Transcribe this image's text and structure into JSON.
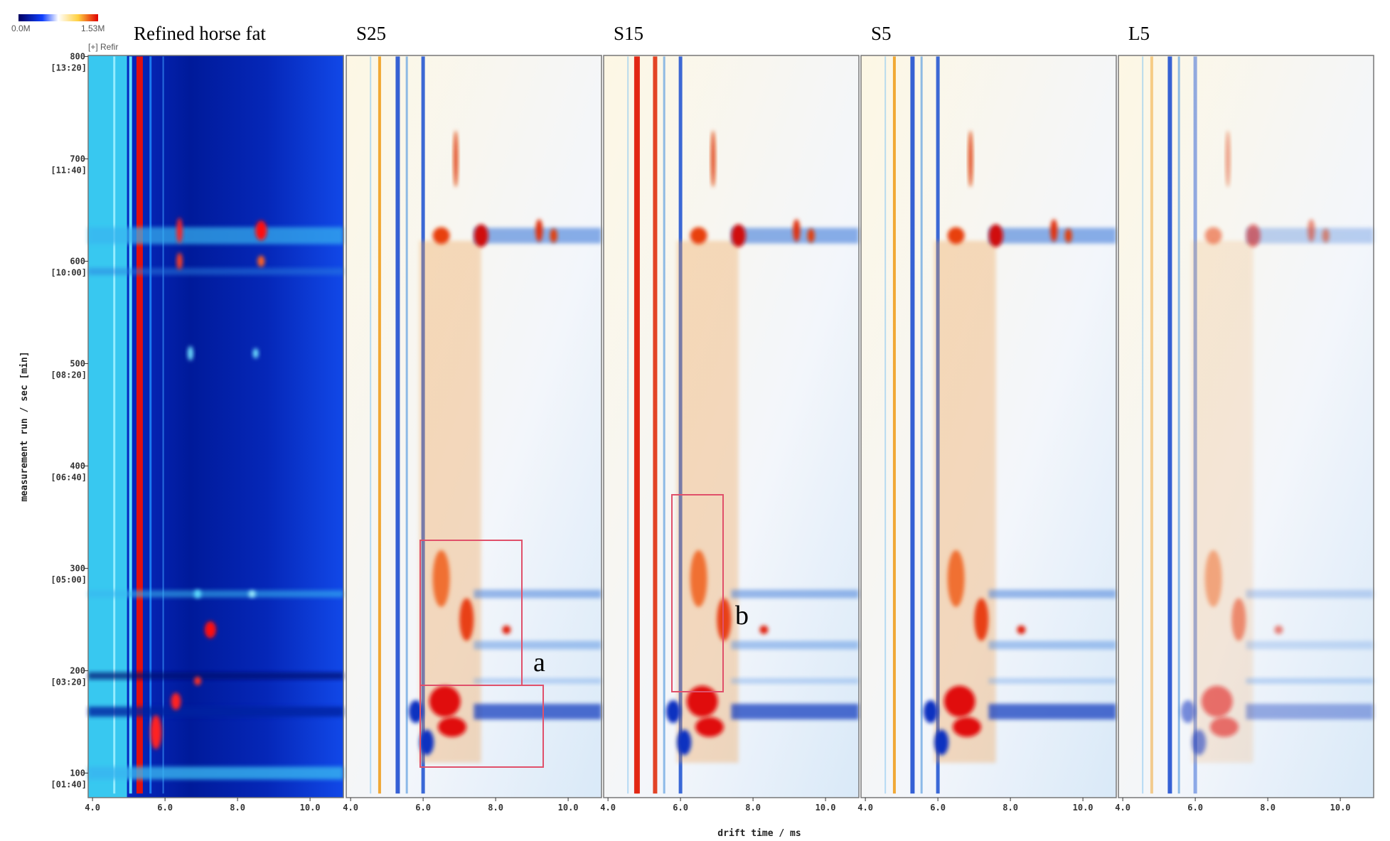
{
  "colorbar": {
    "min_label": "0.0M",
    "max_label": "1.53M"
  },
  "chart_data": [
    {
      "type": "heatmap",
      "title": "Refined horse fat",
      "subtitle": "[+] Refir",
      "ylabel": "measurement run / sec [min]",
      "xlim": [
        3.88,
        10.92
      ],
      "xticks": [
        {
          "value": 4,
          "label": "4.0"
        },
        {
          "value": 6,
          "label": "6.0"
        },
        {
          "value": 8,
          "label": "8.0"
        },
        {
          "value": 10,
          "label": "10.0"
        }
      ],
      "ylim": [
        76,
        801
      ],
      "yticks": [
        800,
        700,
        600,
        500,
        400,
        300,
        200,
        100
      ],
      "ytick_sublabels": [
        "[13:20]",
        "[11:40]",
        "[10:00]",
        "[08:20]",
        "[06:40]",
        "[05:00]",
        "[03:20]",
        "[01:40]"
      ]
    },
    {
      "type": "heatmap",
      "title": "S25",
      "annotation": "a",
      "xlim": [
        3.88,
        10.92
      ],
      "xticks": [
        {
          "value": 4,
          "label": "4.0"
        },
        {
          "value": 6,
          "label": "6.0"
        },
        {
          "value": 8,
          "label": "8.0"
        },
        {
          "value": 10,
          "label": "10.0"
        }
      ]
    },
    {
      "type": "heatmap",
      "title": "S15",
      "annotation": "b",
      "xlabel": "drift time / ms",
      "xlim": [
        3.88,
        10.92
      ],
      "xticks": [
        {
          "value": 4,
          "label": "4.0"
        },
        {
          "value": 6,
          "label": "6.0"
        },
        {
          "value": 8,
          "label": "8.0"
        },
        {
          "value": 10,
          "label": "10.0"
        }
      ]
    },
    {
      "type": "heatmap",
      "title": "S5",
      "xlim": [
        3.88,
        10.92
      ],
      "xticks": [
        {
          "value": 4,
          "label": "4.0"
        },
        {
          "value": 6,
          "label": "6.0"
        },
        {
          "value": 8,
          "label": "8.0"
        },
        {
          "value": 10,
          "label": "10.0"
        }
      ]
    },
    {
      "type": "heatmap",
      "title": "L5",
      "xlim": [
        3.88,
        10.92
      ],
      "xticks": [
        {
          "value": 4,
          "label": "4.0"
        },
        {
          "value": 6,
          "label": "6.0"
        },
        {
          "value": 8,
          "label": "8.0"
        },
        {
          "value": 10,
          "label": "10.0"
        }
      ]
    }
  ]
}
